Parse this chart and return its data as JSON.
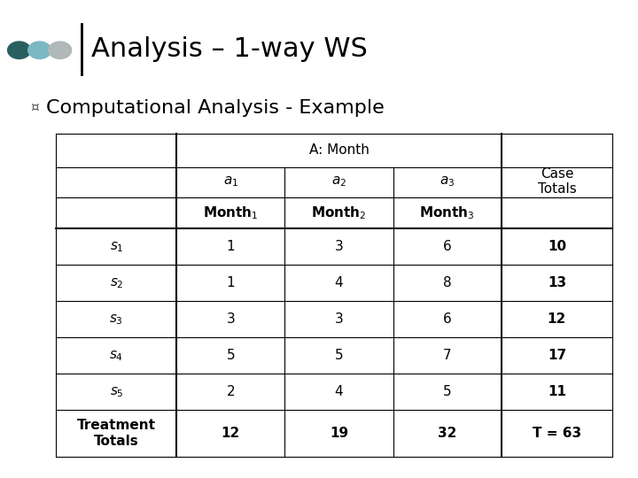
{
  "title": "Analysis – 1-way WS",
  "subtitle": "Computational Analysis - Example",
  "dot_colors": [
    "#2a5f5f",
    "#7ab8c4",
    "#b0b8b8"
  ],
  "rows": [
    [
      "s₁",
      "1",
      "3",
      "6",
      "10"
    ],
    [
      "s₂",
      "1",
      "4",
      "8",
      "13"
    ],
    [
      "s₃",
      "3",
      "3",
      "6",
      "12"
    ],
    [
      "s₄",
      "5",
      "5",
      "7",
      "17"
    ],
    [
      "s₅",
      "2",
      "4",
      "5",
      "11"
    ]
  ],
  "footer_row": [
    "Treatment\nTotals",
    "12",
    "19",
    "32",
    "T = 63"
  ],
  "bg_color": "#ffffff",
  "table_line_color": "#000000",
  "title_fontsize": 22,
  "subtitle_fontsize": 16,
  "table_fontsize": 11
}
